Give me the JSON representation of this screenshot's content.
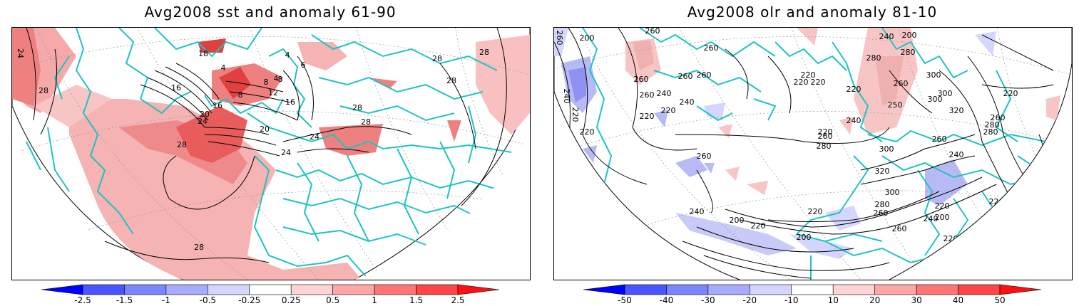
{
  "panels": [
    {
      "id": "sst",
      "title": "Avg2008 sst and anomaly 61-90",
      "contour_labels": [
        "24",
        "28",
        "28",
        "28",
        "28",
        "18",
        "6",
        "4",
        "4",
        "8",
        "4",
        "8",
        "8",
        "12",
        "16",
        "16",
        "20",
        "24",
        "16",
        "20",
        "24",
        "28",
        "24",
        "28",
        "28",
        "28"
      ],
      "colorbar": {
        "labels": [
          "-2.5",
          "-1.5",
          "-1",
          "-0.5",
          "-0.25",
          "0.25",
          "0.5",
          "1",
          "1.5",
          "2.5"
        ],
        "colors": [
          "#0000ff",
          "#4a55ff",
          "#7b84ff",
          "#a6abff",
          "#d4d6ff",
          "#ffffff",
          "#ffd4d4",
          "#ffa6a6",
          "#ff7575",
          "#ff4545",
          "#ff1010"
        ]
      }
    },
    {
      "id": "olr",
      "title": "Avg2008 olr and anomaly 81-10",
      "contour_labels": [
        "260",
        "200",
        "240",
        "220",
        "260",
        "260",
        "260",
        "260",
        "260",
        "240",
        "260",
        "240",
        "220",
        "260",
        "220",
        "220",
        "220",
        "220",
        "220",
        "280",
        "220",
        "300",
        "220",
        "240",
        "200",
        "280",
        "300",
        "260",
        "300",
        "250",
        "320",
        "240",
        "260",
        "280",
        "220",
        "280",
        "300",
        "320",
        "300",
        "280",
        "240",
        "260",
        "260",
        "280",
        "220",
        "200",
        "220",
        "260",
        "240",
        "200",
        "220",
        "260",
        "240",
        "200",
        "220",
        "260",
        "220",
        "200",
        "220"
      ],
      "colorbar": {
        "labels": [
          "-50",
          "-40",
          "-30",
          "-20",
          "-10",
          "10",
          "20",
          "30",
          "40",
          "50"
        ],
        "colors": [
          "#0000ff",
          "#4a55ff",
          "#7b84ff",
          "#a6abff",
          "#d4d6ff",
          "#ffffff",
          "#ffd4d4",
          "#ffa6a6",
          "#ff7575",
          "#ff4545",
          "#ff1010"
        ]
      }
    }
  ],
  "style": {
    "coastline": "#1fc3c3",
    "contour": "#000000",
    "anomaly_pos": "#f08a8a",
    "anomaly_neg": "#9a9cf0"
  }
}
